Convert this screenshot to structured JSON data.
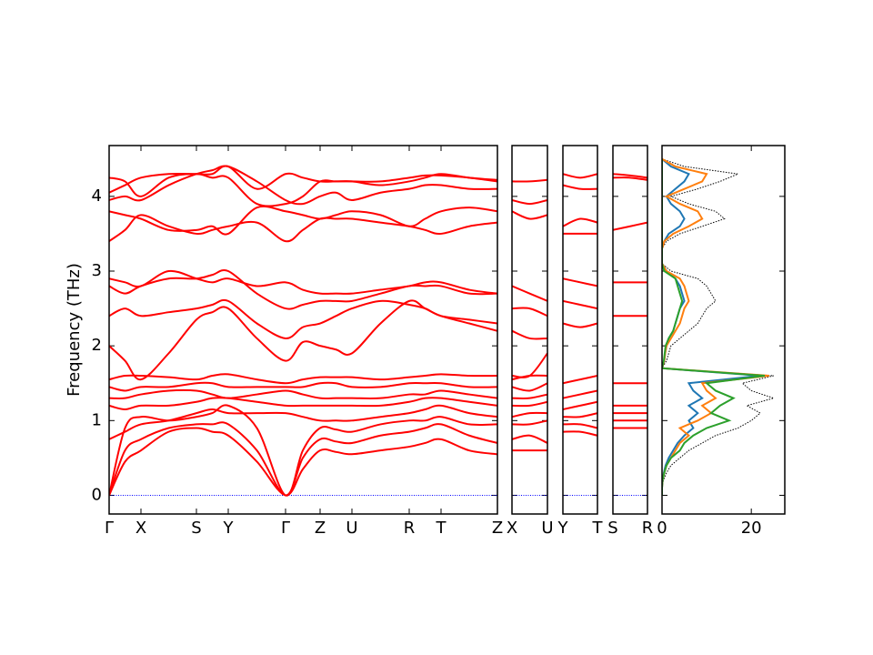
{
  "chart_data": [
    {
      "type": "band",
      "ylabel": "Frequency (THz)",
      "color": "#ff0000",
      "hline": 0,
      "hline_color": "#0000ff",
      "ylim": [
        -0.25,
        4.68
      ],
      "yticks": [
        0,
        1,
        2,
        3,
        4
      ],
      "xlim": [
        0,
        4.27
      ],
      "xticks": [
        {
          "value": 0,
          "label": "Γ"
        },
        {
          "value": 0.35,
          "label": "X"
        },
        {
          "value": 0.96,
          "label": "S"
        },
        {
          "value": 1.31,
          "label": "Y"
        },
        {
          "value": 1.94,
          "label": "Γ"
        },
        {
          "value": 2.32,
          "label": "Z"
        },
        {
          "value": 2.67,
          "label": "U"
        },
        {
          "value": 3.3,
          "label": "R"
        },
        {
          "value": 3.65,
          "label": "T"
        },
        {
          "value": 4.27,
          "label": "Z"
        }
      ],
      "x": [
        0,
        0.175,
        0.35,
        0.655,
        0.96,
        1.135,
        1.31,
        1.625,
        1.94,
        2.13,
        2.32,
        2.495,
        2.67,
        2.985,
        3.3,
        3.475,
        3.65,
        3.96,
        4.27
      ],
      "series": [
        {
          "values": [
            0,
            0.45,
            0.6,
            0.85,
            0.9,
            0.85,
            0.8,
            0.45,
            0,
            0.35,
            0.6,
            0.58,
            0.55,
            0.6,
            0.65,
            0.7,
            0.75,
            0.6,
            0.55
          ]
        },
        {
          "values": [
            0,
            0.6,
            0.75,
            0.9,
            0.95,
            0.95,
            0.95,
            0.6,
            0,
            0.5,
            0.75,
            0.72,
            0.7,
            0.8,
            0.85,
            0.9,
            0.95,
            0.8,
            0.7
          ]
        },
        {
          "values": [
            0,
            0.9,
            1.05,
            1.0,
            1.05,
            1.1,
            1.2,
            0.9,
            0,
            0.6,
            0.9,
            0.88,
            0.85,
            0.95,
            1.0,
            1.0,
            1.05,
            0.95,
            0.95
          ]
        },
        {
          "values": [
            0.75,
            0.85,
            0.95,
            1.0,
            1.1,
            1.15,
            1.1,
            1.1,
            1.1,
            1.05,
            1.0,
            1.0,
            1.0,
            1.05,
            1.1,
            1.15,
            1.2,
            1.1,
            1.05
          ]
        },
        {
          "values": [
            1.2,
            1.15,
            1.2,
            1.2,
            1.25,
            1.3,
            1.3,
            1.25,
            1.2,
            1.2,
            1.2,
            1.2,
            1.2,
            1.2,
            1.25,
            1.3,
            1.3,
            1.25,
            1.2
          ]
        },
        {
          "values": [
            1.3,
            1.3,
            1.35,
            1.4,
            1.4,
            1.35,
            1.3,
            1.35,
            1.4,
            1.35,
            1.3,
            1.3,
            1.3,
            1.3,
            1.35,
            1.35,
            1.4,
            1.35,
            1.3
          ]
        },
        {
          "values": [
            1.45,
            1.4,
            1.45,
            1.45,
            1.5,
            1.5,
            1.45,
            1.45,
            1.45,
            1.45,
            1.5,
            1.5,
            1.45,
            1.45,
            1.5,
            1.5,
            1.5,
            1.45,
            1.45
          ]
        },
        {
          "values": [
            1.55,
            1.6,
            1.6,
            1.58,
            1.55,
            1.6,
            1.62,
            1.55,
            1.5,
            1.55,
            1.58,
            1.58,
            1.58,
            1.55,
            1.58,
            1.6,
            1.62,
            1.6,
            1.6
          ]
        },
        {
          "values": [
            2.0,
            1.8,
            1.55,
            1.9,
            2.35,
            2.45,
            2.5,
            2.1,
            1.8,
            2.05,
            2.0,
            1.95,
            1.9,
            2.3,
            2.6,
            2.5,
            2.4,
            2.3,
            2.2
          ]
        },
        {
          "values": [
            2.4,
            2.5,
            2.4,
            2.45,
            2.5,
            2.55,
            2.6,
            2.3,
            2.1,
            2.25,
            2.3,
            2.4,
            2.5,
            2.6,
            2.55,
            2.5,
            2.4,
            2.35,
            2.3
          ]
        },
        {
          "values": [
            2.8,
            2.7,
            2.8,
            2.9,
            2.9,
            2.95,
            3.0,
            2.7,
            2.5,
            2.55,
            2.6,
            2.6,
            2.6,
            2.7,
            2.8,
            2.8,
            2.8,
            2.7,
            2.7
          ]
        },
        {
          "values": [
            2.9,
            2.85,
            2.8,
            3.0,
            2.9,
            2.85,
            2.9,
            2.8,
            2.85,
            2.75,
            2.7,
            2.7,
            2.7,
            2.75,
            2.8,
            2.85,
            2.85,
            2.75,
            2.7
          ]
        },
        {
          "values": [
            3.4,
            3.55,
            3.75,
            3.6,
            3.5,
            3.55,
            3.6,
            3.65,
            3.4,
            3.55,
            3.7,
            3.7,
            3.7,
            3.65,
            3.6,
            3.55,
            3.5,
            3.6,
            3.65
          ]
        },
        {
          "values": [
            3.8,
            3.75,
            3.7,
            3.55,
            3.55,
            3.6,
            3.5,
            3.85,
            3.8,
            3.75,
            3.7,
            3.75,
            3.8,
            3.75,
            3.6,
            3.7,
            3.8,
            3.85,
            3.8
          ]
        },
        {
          "values": [
            3.95,
            4.0,
            3.95,
            4.15,
            4.3,
            4.35,
            4.4,
            4.2,
            3.95,
            3.9,
            4.0,
            4.05,
            3.95,
            4.05,
            4.1,
            4.15,
            4.15,
            4.1,
            4.1
          ]
        },
        {
          "values": [
            4.05,
            4.15,
            4.25,
            4.3,
            4.3,
            4.3,
            4.4,
            4.1,
            4.3,
            4.25,
            4.2,
            4.2,
            4.2,
            4.2,
            4.25,
            4.28,
            4.28,
            4.25,
            4.2
          ]
        },
        {
          "values": [
            4.25,
            4.2,
            4.0,
            4.25,
            4.3,
            4.25,
            4.25,
            3.9,
            3.9,
            4.0,
            4.2,
            4.2,
            4.2,
            4.15,
            4.2,
            4.25,
            4.3,
            4.25,
            4.22
          ]
        }
      ]
    },
    {
      "type": "band",
      "color": "#ff0000",
      "hline": 0,
      "hline_color": "#0000ff",
      "xlim": [
        0,
        1
      ],
      "xticks": [
        {
          "value": 0,
          "label": "X"
        },
        {
          "value": 1,
          "label": "U"
        }
      ],
      "x": [
        0,
        0.5,
        1
      ],
      "series": [
        {
          "values": [
            0.6,
            0.6,
            0.6
          ]
        },
        {
          "values": [
            0.75,
            0.8,
            0.7
          ]
        },
        {
          "values": [
            0.95,
            0.95,
            1.0
          ]
        },
        {
          "values": [
            1.05,
            1.1,
            1.1
          ]
        },
        {
          "values": [
            1.2,
            1.2,
            1.25
          ]
        },
        {
          "values": [
            1.3,
            1.3,
            1.35
          ]
        },
        {
          "values": [
            1.45,
            1.4,
            1.5
          ]
        },
        {
          "values": [
            1.55,
            1.6,
            1.6
          ]
        },
        {
          "values": [
            1.6,
            1.6,
            1.9
          ]
        },
        {
          "values": [
            2.2,
            2.1,
            2.1
          ]
        },
        {
          "values": [
            2.5,
            2.5,
            2.4
          ]
        },
        {
          "values": [
            2.8,
            2.7,
            2.6
          ]
        },
        {
          "values": [
            3.8,
            3.7,
            3.75
          ]
        },
        {
          "values": [
            3.95,
            3.9,
            3.95
          ]
        },
        {
          "values": [
            4.2,
            4.2,
            4.22
          ]
        }
      ]
    },
    {
      "type": "band",
      "color": "#ff0000",
      "hline": 0,
      "hline_color": "#0000ff",
      "xlim": [
        0,
        1
      ],
      "xticks": [
        {
          "value": 0,
          "label": "Y"
        },
        {
          "value": 1,
          "label": "T"
        }
      ],
      "x": [
        0,
        0.5,
        1
      ],
      "series": [
        {
          "values": [
            0.85,
            0.85,
            0.8
          ]
        },
        {
          "values": [
            0.95,
            0.95,
            0.9
          ]
        },
        {
          "values": [
            1.05,
            1.05,
            1.1
          ]
        },
        {
          "values": [
            1.15,
            1.2,
            1.25
          ]
        },
        {
          "values": [
            1.3,
            1.35,
            1.4
          ]
        },
        {
          "values": [
            1.5,
            1.55,
            1.6
          ]
        },
        {
          "values": [
            2.3,
            2.25,
            2.3
          ]
        },
        {
          "values": [
            2.6,
            2.55,
            2.5
          ]
        },
        {
          "values": [
            2.9,
            2.85,
            2.8
          ]
        },
        {
          "values": [
            3.5,
            3.5,
            3.5
          ]
        },
        {
          "values": [
            3.6,
            3.7,
            3.65
          ]
        },
        {
          "values": [
            4.15,
            4.1,
            4.1
          ]
        },
        {
          "values": [
            4.3,
            4.25,
            4.3
          ]
        }
      ]
    },
    {
      "type": "band",
      "color": "#ff0000",
      "hline": 0,
      "hline_color": "#0000ff",
      "xlim": [
        0,
        1
      ],
      "xticks": [
        {
          "value": 0,
          "label": "S"
        },
        {
          "value": 1,
          "label": "R"
        }
      ],
      "x": [
        0,
        0.5,
        1
      ],
      "series": [
        {
          "values": [
            0.9,
            0.9,
            0.9
          ]
        },
        {
          "values": [
            1.0,
            1.0,
            1.0
          ]
        },
        {
          "values": [
            1.1,
            1.1,
            1.1
          ]
        },
        {
          "values": [
            1.2,
            1.2,
            1.2
          ]
        },
        {
          "values": [
            1.5,
            1.5,
            1.5
          ]
        },
        {
          "values": [
            2.4,
            2.4,
            2.4
          ]
        },
        {
          "values": [
            2.85,
            2.85,
            2.85
          ]
        },
        {
          "values": [
            3.55,
            3.6,
            3.65
          ]
        },
        {
          "values": [
            4.25,
            4.25,
            4.22
          ]
        },
        {
          "values": [
            4.3,
            4.28,
            4.25
          ]
        }
      ]
    },
    {
      "type": "dos",
      "xlim": [
        0,
        27.5
      ],
      "xticks": [
        0,
        20
      ],
      "y": [
        0,
        0.1,
        0.2,
        0.3,
        0.4,
        0.5,
        0.6,
        0.7,
        0.8,
        0.9,
        1.0,
        1.1,
        1.2,
        1.3,
        1.4,
        1.5,
        1.6,
        1.7,
        1.8,
        1.9,
        2.0,
        2.1,
        2.2,
        2.3,
        2.4,
        2.5,
        2.6,
        2.7,
        2.8,
        2.9,
        3.0,
        3.1,
        3.2,
        3.3,
        3.4,
        3.5,
        3.6,
        3.7,
        3.8,
        3.9,
        4.0,
        4.1,
        4.2,
        4.3,
        4.4,
        4.5
      ],
      "series": [
        {
          "color": "#000000",
          "dash": true,
          "values": [
            0,
            0,
            0.3,
            1,
            2,
            4,
            6,
            9,
            12,
            17,
            20,
            22,
            19,
            25,
            20,
            18,
            25,
            0,
            1,
            1.5,
            2,
            4,
            6,
            8,
            9,
            10,
            12,
            11,
            10,
            8,
            2,
            0,
            0,
            0,
            1,
            4,
            9,
            14,
            12,
            6,
            2,
            8,
            13,
            17,
            5,
            0
          ]
        },
        {
          "color": "#1f77b4",
          "values": [
            0,
            0,
            0.1,
            0.4,
            0.8,
            1.5,
            2.5,
            3.5,
            5,
            7,
            6,
            8,
            6,
            9,
            7,
            6,
            22,
            0,
            0.5,
            0.7,
            1,
            1.5,
            2.5,
            3,
            3.5,
            4,
            5,
            4.5,
            4,
            3,
            1,
            0,
            0,
            0,
            0.5,
            1.5,
            4,
            5,
            4,
            2,
            1,
            3,
            5,
            6,
            2,
            0
          ]
        },
        {
          "color": "#ff7f0e",
          "values": [
            0,
            0,
            0.1,
            0.5,
            1,
            2,
            3,
            4,
            6,
            4,
            8,
            11,
            9,
            12,
            10,
            9,
            24,
            0,
            0.5,
            0.7,
            1,
            2,
            3,
            4,
            4.5,
            5,
            6,
            5.5,
            5,
            4,
            1,
            0,
            0,
            0,
            0.5,
            2.5,
            6,
            9,
            8,
            4,
            1,
            5,
            9,
            10,
            3,
            0
          ]
        },
        {
          "color": "#2ca02c",
          "values": [
            0,
            0,
            0.1,
            0.5,
            1,
            2,
            4,
            5,
            7,
            10,
            15,
            11,
            13,
            16,
            12,
            10,
            23,
            0,
            0.4,
            0.6,
            0.8,
            1.5,
            2.5,
            3,
            3.5,
            4,
            4.5,
            4,
            3.5,
            3,
            0.5,
            0,
            0,
            0,
            0,
            0,
            0,
            0,
            0,
            0,
            0,
            0,
            0,
            0,
            0,
            0
          ]
        }
      ]
    }
  ]
}
